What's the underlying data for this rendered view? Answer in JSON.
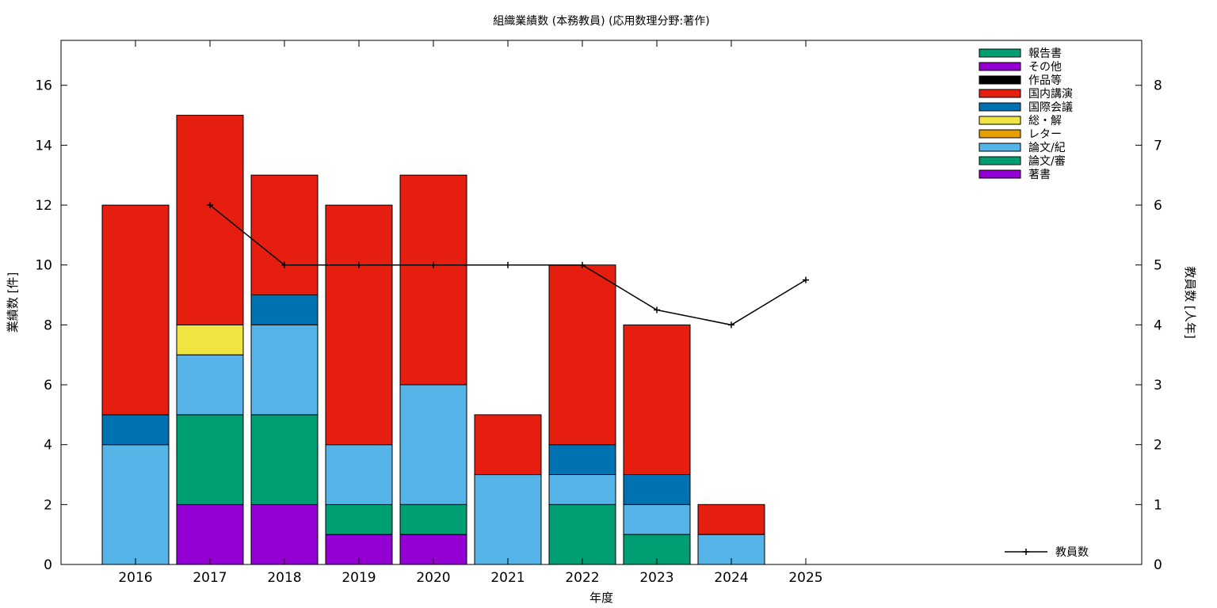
{
  "chart_data": {
    "type": "bar",
    "title": "組織業績数 (本務教員) (応用数理分野:著作)",
    "xlabel": "年度",
    "ylabel": "業績数 [件]",
    "y2label": "教員数 [人年]",
    "categories": [
      "2016",
      "2017",
      "2018",
      "2019",
      "2020",
      "2021",
      "2022",
      "2023",
      "2024",
      "2025"
    ],
    "ylim": [
      0,
      17.5
    ],
    "y2lim": [
      0,
      8.75
    ],
    "yticks": [
      0,
      2,
      4,
      6,
      8,
      10,
      12,
      14,
      16
    ],
    "y2ticks": [
      0,
      1,
      2,
      3,
      4,
      5,
      6,
      7,
      8
    ],
    "stacked": true,
    "legend_position": "top-right",
    "series": [
      {
        "name": "著書",
        "color": "#9400d3",
        "values": [
          0,
          2,
          2,
          1,
          1,
          0,
          0,
          0,
          0,
          0
        ]
      },
      {
        "name": "論文/審",
        "color": "#009e73",
        "values": [
          0,
          3,
          3,
          1,
          1,
          0,
          2,
          1,
          0,
          0
        ]
      },
      {
        "name": "論文/紀",
        "color": "#56b4e9",
        "values": [
          4,
          2,
          3,
          2,
          4,
          3,
          1,
          1,
          1,
          0
        ]
      },
      {
        "name": "レター",
        "color": "#e69f00",
        "values": [
          0,
          0,
          0,
          0,
          0,
          0,
          0,
          0,
          0,
          0
        ]
      },
      {
        "name": "総・解",
        "color": "#f0e442",
        "values": [
          0,
          1,
          0,
          0,
          0,
          0,
          0,
          0,
          0,
          0
        ]
      },
      {
        "name": "国際会議",
        "color": "#0072b2",
        "values": [
          1,
          0,
          1,
          0,
          0,
          0,
          1,
          1,
          0,
          0
        ]
      },
      {
        "name": "国内講演",
        "color": "#e51e10",
        "values": [
          7,
          7,
          4,
          8,
          7,
          2,
          6,
          5,
          1,
          0
        ]
      },
      {
        "name": "作品等",
        "color": "#000000",
        "values": [
          0,
          0,
          0,
          0,
          0,
          0,
          0,
          0,
          0,
          0
        ]
      },
      {
        "name": "その他",
        "color": "#9400d3",
        "values": [
          0,
          0,
          0,
          0,
          0,
          0,
          0,
          0,
          0,
          0
        ]
      },
      {
        "name": "報告書",
        "color": "#009e73",
        "values": [
          0,
          0,
          0,
          0,
          0,
          0,
          0,
          0,
          0,
          0
        ]
      }
    ],
    "line_series": {
      "name": "教員数",
      "color": "#000000",
      "axis": "right",
      "x": [
        "2017",
        "2018",
        "2019",
        "2020",
        "2021",
        "2022",
        "2023",
        "2024",
        "2025"
      ],
      "values": [
        6,
        5,
        5,
        5,
        5,
        5,
        4.25,
        4,
        4.75
      ]
    }
  }
}
